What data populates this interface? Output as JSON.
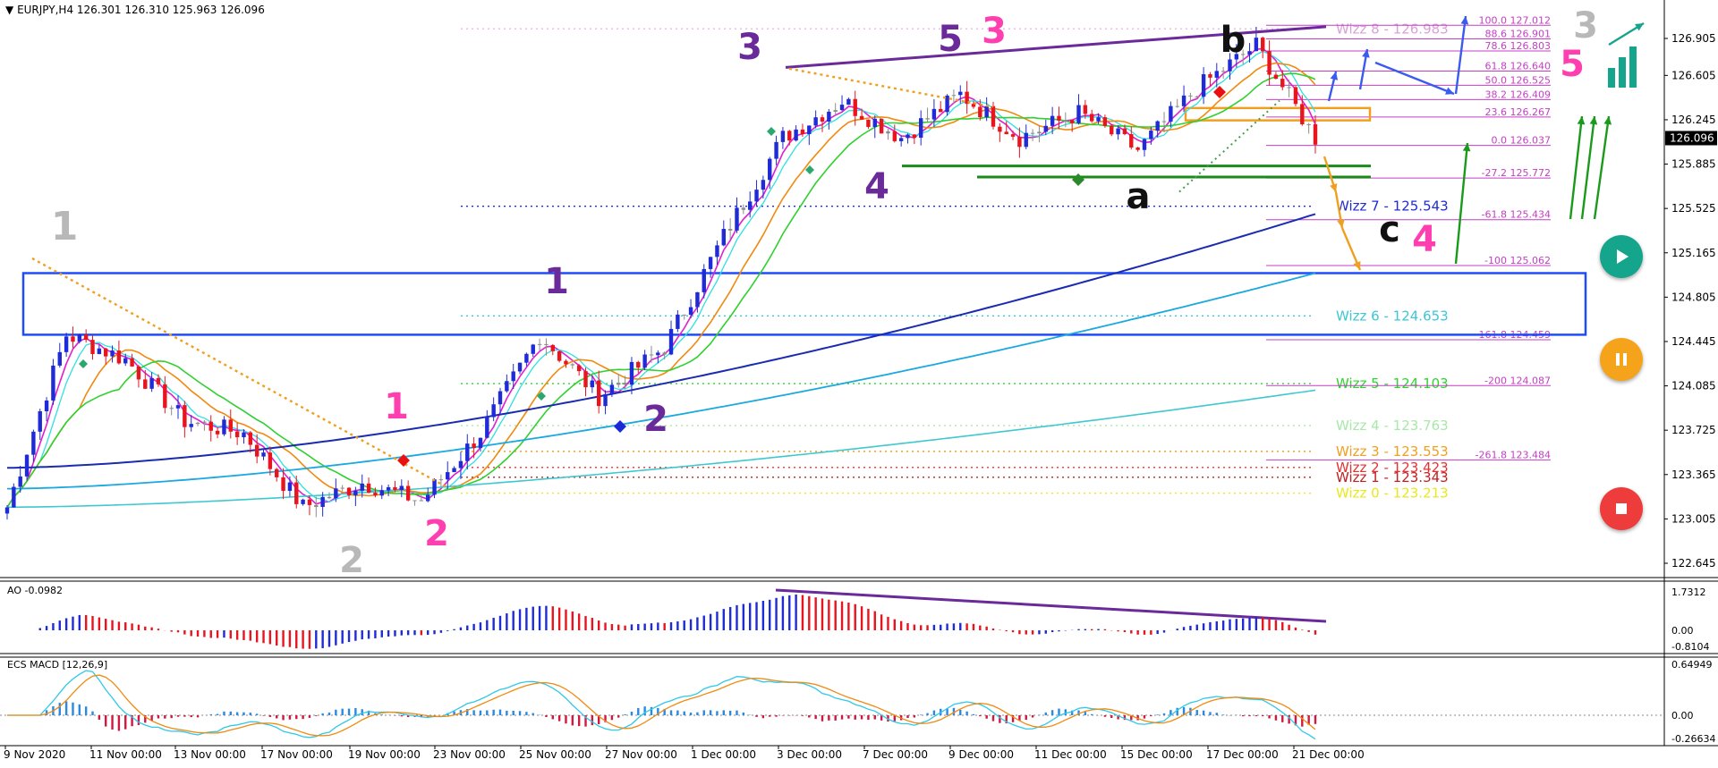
{
  "header": {
    "symbol_line": "EURJPY,H4  126.301 126.310 125.963 126.096"
  },
  "colors": {
    "bull": "#1f2bd6",
    "bear": "#e8141e",
    "neutral": "#8c8c8c",
    "fib": "#c43fc4",
    "channel": "#1f4bff"
  },
  "price_axis": {
    "ticks": [
      "126.905",
      "126.605",
      "126.245",
      "125.885",
      "125.525",
      "125.165",
      "124.805",
      "124.445",
      "124.085",
      "123.725",
      "123.365",
      "123.005",
      "122.645"
    ],
    "current": "126.096"
  },
  "time_axis": {
    "labels": [
      "9 Nov 2020",
      "11 Nov 00:00",
      "13 Nov 00:00",
      "17 Nov 00:00",
      "19 Nov 00:00",
      "23 Nov 00:00",
      "25 Nov 00:00",
      "27 Nov 00:00",
      "1 Dec 00:00",
      "3 Dec 00:00",
      "7 Dec 00:00",
      "9 Dec 00:00",
      "11 Dec 00:00",
      "15 Dec 00:00",
      "17 Dec 00:00",
      "21 Dec 00:00"
    ]
  },
  "wizz_levels": [
    {
      "label": "Wizz 8 - 126.983",
      "price": 126.983,
      "color": "#d9a0d9"
    },
    {
      "label": "Wizz 7 - 125.543",
      "price": 125.543,
      "color": "#1f2bd6"
    },
    {
      "label": "Wizz 6 - 124.653",
      "price": 124.653,
      "color": "#3ec6d6"
    },
    {
      "label": "Wizz 5 - 124.103",
      "price": 124.103,
      "color": "#2bd62b"
    },
    {
      "label": "Wizz 4 - 123.763",
      "price": 123.763,
      "color": "#a8e8a8"
    },
    {
      "label": "Wizz 3 - 123.553",
      "price": 123.553,
      "color": "#f0a020"
    },
    {
      "label": "Wizz 2 - 123.423",
      "price": 123.423,
      "color": "#e83030"
    },
    {
      "label": "Wizz 1 - 123.343",
      "price": 123.343,
      "color": "#c02020"
    },
    {
      "label": "Wizz 0 - 123.213",
      "price": 123.213,
      "color": "#e8e820"
    }
  ],
  "fib_levels": [
    {
      "label": "100.0 127.012",
      "price": 127.012
    },
    {
      "label": "88.6 126.901",
      "price": 126.901
    },
    {
      "label": "78.6 126.803",
      "price": 126.803
    },
    {
      "label": "61.8 126.640",
      "price": 126.64
    },
    {
      "label": "50.0 126.525",
      "price": 126.525
    },
    {
      "label": "38.2 126.409",
      "price": 126.409
    },
    {
      "label": "23.6 126.267",
      "price": 126.267
    },
    {
      "label": "0.0 126.037",
      "price": 126.037
    },
    {
      "label": "-27.2 125.772",
      "price": 125.772
    },
    {
      "label": "-61.8 125.434",
      "price": 125.434
    },
    {
      "label": "-100  125.062",
      "price": 125.062
    },
    {
      "label": "-161.8 124.459",
      "price": 124.459
    },
    {
      "label": "-200  124.087",
      "price": 124.087
    },
    {
      "label": "-261.8 123.484",
      "price": 123.484
    }
  ],
  "wave_labels": [
    {
      "text": "1",
      "color": "#b8b8b8"
    },
    {
      "text": "2",
      "color": "#b8b8b8"
    },
    {
      "text": "1",
      "color": "#ff3fb0"
    },
    {
      "text": "2",
      "color": "#ff3fb0"
    },
    {
      "text": "1",
      "color": "#6a2a9a"
    },
    {
      "text": "2",
      "color": "#6a2a9a"
    },
    {
      "text": "3",
      "color": "#6a2a9a"
    },
    {
      "text": "4",
      "color": "#6a2a9a"
    },
    {
      "text": "5",
      "color": "#6a2a9a"
    },
    {
      "text": "3",
      "color": "#ff3fb0"
    },
    {
      "text": "b",
      "color": "#111111"
    },
    {
      "text": "a",
      "color": "#111111"
    },
    {
      "text": "c",
      "color": "#111111"
    },
    {
      "text": "4",
      "color": "#ff3fb0"
    },
    {
      "text": "3",
      "color": "#b8b8b8"
    },
    {
      "text": "5",
      "color": "#ff3fb0"
    }
  ],
  "ao_panel": {
    "title": "AO -0.0982",
    "ticks": [
      "1.7312",
      "0.00",
      "-0.8104"
    ]
  },
  "macd_panel": {
    "title": "ECS MACD [12,26,9]",
    "ticks": [
      "0.64949",
      "0.00",
      "-0.26634"
    ]
  },
  "controls": {
    "play": "play-button",
    "pause": "pause-button",
    "stop": "stop-button"
  },
  "chart_data": {
    "type": "candlestick",
    "title": "EURJPY,H4",
    "ohlc_header": {
      "open": 126.301,
      "high": 126.31,
      "low": 125.963,
      "close": 126.096
    },
    "ylim": [
      122.56,
      127.12
    ],
    "approx_close_path": [
      {
        "x": "9 Nov 2020",
        "close": 123.1
      },
      {
        "x": "10 Nov",
        "close": 124.5
      },
      {
        "x": "11 Nov 00:00",
        "close": 124.3
      },
      {
        "x": "13 Nov 00:00",
        "close": 123.8
      },
      {
        "x": "17 Nov 00:00",
        "close": 123.7
      },
      {
        "x": "18 Nov",
        "close": 123.1
      },
      {
        "x": "19 Nov 00:00",
        "close": 123.3
      },
      {
        "x": "20 Nov",
        "close": 123.15
      },
      {
        "x": "23 Nov 00:00",
        "close": 123.7
      },
      {
        "x": "25 Nov 00:00",
        "close": 124.5
      },
      {
        "x": "26 Nov",
        "close": 124.0
      },
      {
        "x": "27 Nov 00:00",
        "close": 124.4
      },
      {
        "x": "30 Nov",
        "close": 125.3
      },
      {
        "x": "1 Dec 00:00",
        "close": 126.1
      },
      {
        "x": "3 Dec 00:00",
        "close": 126.4
      },
      {
        "x": "7 Dec 00:00",
        "close": 126.1
      },
      {
        "x": "9 Dec 00:00",
        "close": 126.45
      },
      {
        "x": "11 Dec 00:00",
        "close": 126.1
      },
      {
        "x": "15 Dec 00:00",
        "close": 126.3
      },
      {
        "x": "16 Dec",
        "close": 126.0
      },
      {
        "x": "17 Dec 00:00",
        "close": 126.5
      },
      {
        "x": "18 Dec",
        "close": 126.85
      },
      {
        "x": "21 Dec 00:00",
        "close": 126.096
      }
    ]
  }
}
